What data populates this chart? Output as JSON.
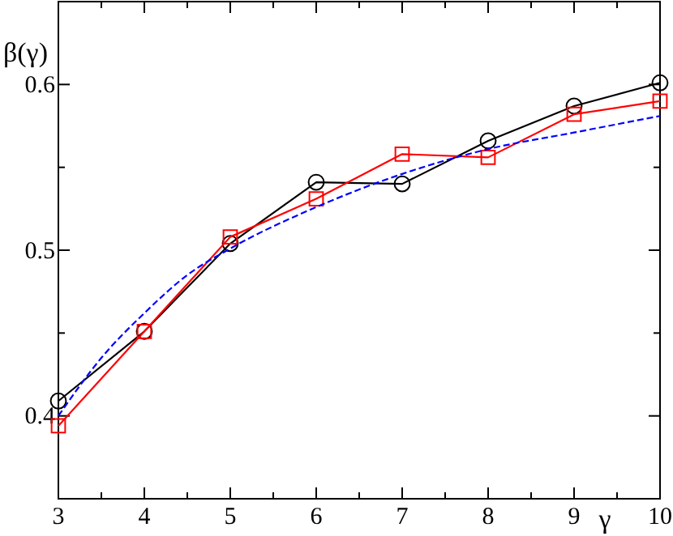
{
  "chart_data": {
    "type": "line",
    "xlabel": "γ",
    "ylabel": "β(γ)",
    "x": [
      3,
      4,
      5,
      6,
      7,
      8,
      9,
      10
    ],
    "xlim": [
      3,
      10
    ],
    "ylim": [
      0.35,
      0.65
    ],
    "xticks": [
      3,
      {
        "value": 3.5,
        "label": null
      },
      4,
      {
        "value": 4.5,
        "label": null
      },
      5,
      {
        "value": 5.5,
        "label": null
      },
      6,
      {
        "value": 6.5,
        "label": null
      },
      7,
      {
        "value": 7.5,
        "label": null
      },
      8,
      {
        "value": 8.5,
        "label": null
      },
      9,
      {
        "value": 9.5,
        "label": null
      },
      10
    ],
    "yticks": [
      {
        "value": 0.35,
        "label": null
      },
      0.4,
      {
        "value": 0.45,
        "label": null
      },
      0.5,
      {
        "value": 0.55,
        "label": null
      },
      0.6,
      {
        "value": 0.65,
        "label": null
      }
    ],
    "grid": false,
    "series": [
      {
        "color": "#000000",
        "marker": "circle",
        "line_style": "solid",
        "values": [
          0.409,
          0.451,
          0.504,
          0.541,
          0.54,
          0.566,
          0.587,
          0.601
        ]
      },
      {
        "color": "#ff0000",
        "marker": "square",
        "line_style": "solid",
        "values": [
          0.394,
          0.451,
          0.508,
          0.531,
          0.558,
          0.556,
          0.582,
          0.59
        ]
      },
      {
        "color": "#0000ff",
        "marker": "none",
        "line_style": "dashed",
        "x": [
          3,
          3.5,
          4,
          4.5,
          5,
          6,
          7,
          8,
          9,
          10
        ],
        "values": [
          0.4,
          0.435,
          0.462,
          0.485,
          0.501,
          0.526,
          0.546,
          0.561,
          0.571,
          0.581
        ]
      }
    ]
  }
}
